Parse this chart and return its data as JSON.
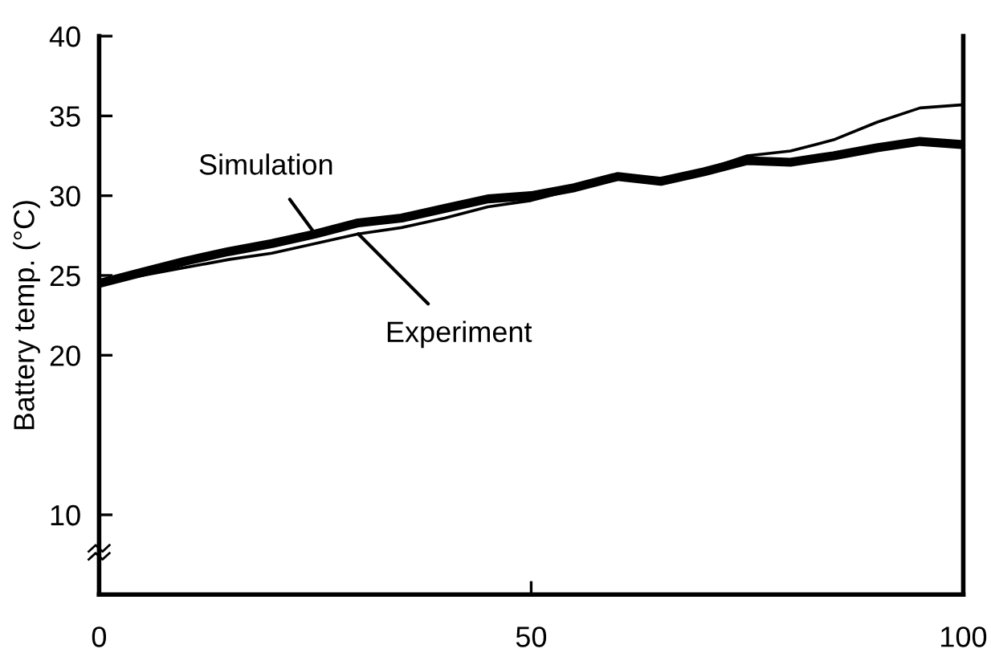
{
  "chart_data": {
    "type": "line",
    "ylabel": "Battery temp. (°C)",
    "x": [
      0,
      5,
      10,
      15,
      20,
      25,
      30,
      35,
      40,
      45,
      50,
      55,
      60,
      65,
      70,
      75,
      80,
      85,
      90,
      95,
      100
    ],
    "series": [
      {
        "name": "Simulation",
        "color": "#000000",
        "values": [
          24.5,
          25.2,
          25.9,
          26.5,
          27.0,
          27.6,
          28.3,
          28.6,
          29.2,
          29.8,
          30.0,
          30.5,
          31.2,
          30.9,
          31.5,
          32.2,
          32.1,
          32.5,
          33.0,
          33.4,
          33.2
        ]
      },
      {
        "name": "Experiment",
        "color": "#000000",
        "values": [
          24.5,
          25.0,
          25.5,
          26.0,
          26.4,
          27.0,
          27.6,
          28.0,
          28.6,
          29.3,
          29.7,
          30.4,
          31.1,
          31.0,
          31.6,
          32.5,
          32.8,
          33.5,
          34.6,
          35.5,
          35.7
        ]
      }
    ],
    "xlim": [
      0,
      100
    ],
    "xticks": [
      0,
      50,
      100
    ],
    "ylim": [
      5,
      40
    ],
    "yticks": [
      10,
      20,
      25,
      30,
      35,
      40
    ],
    "grid": false,
    "legend": false,
    "marker": "none",
    "line_style": "solid"
  }
}
